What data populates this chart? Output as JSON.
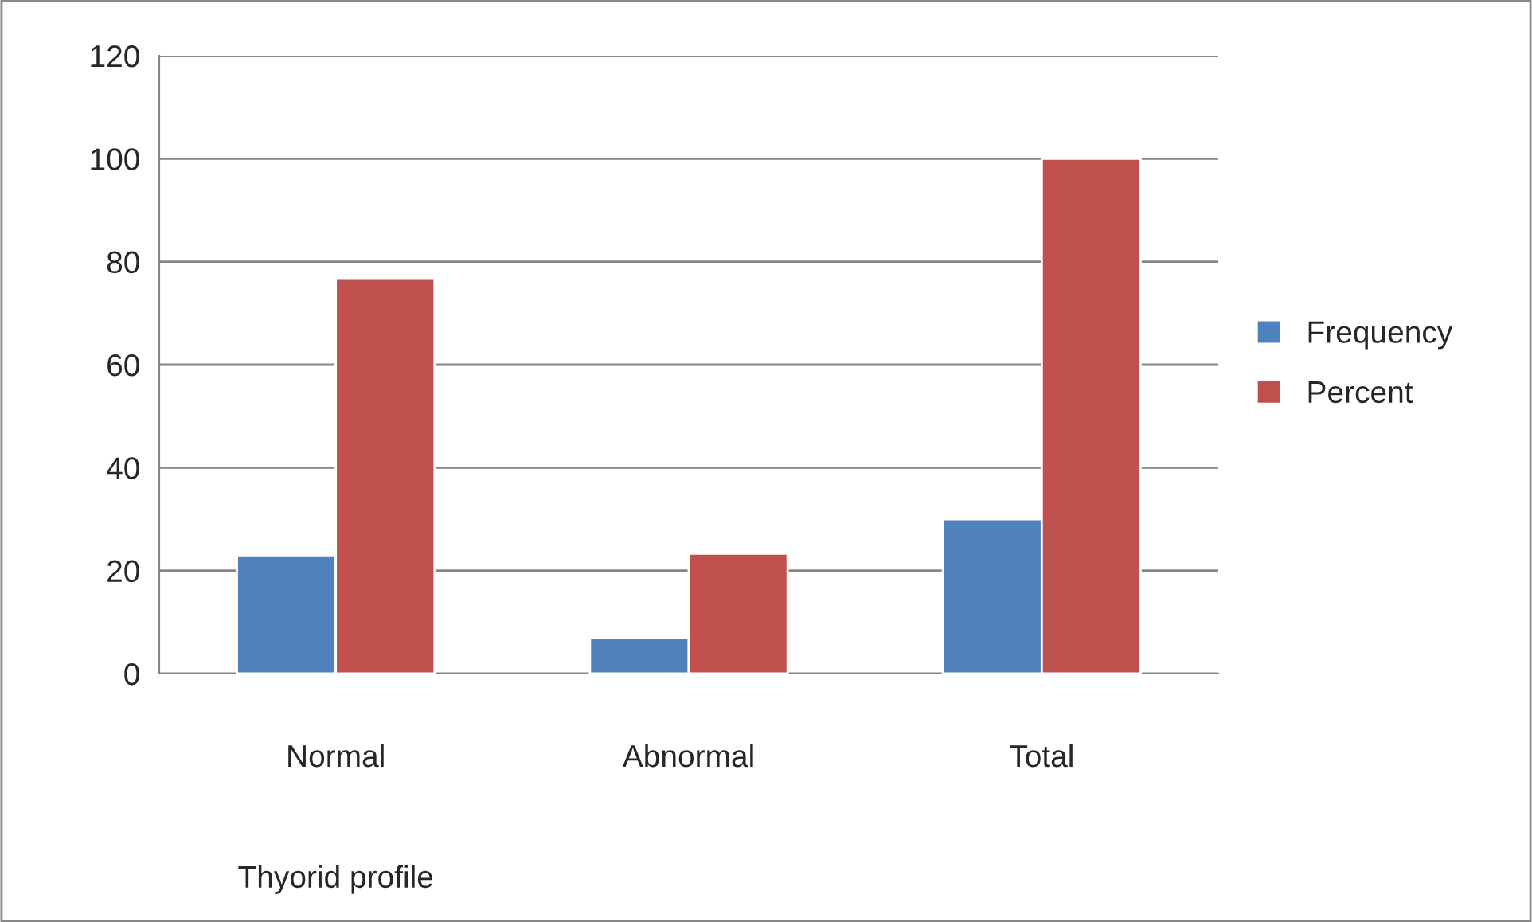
{
  "chart_data": {
    "type": "bar",
    "categories": [
      "Normal",
      "Abnormal",
      "Total"
    ],
    "xlabel": "Thyorid profile",
    "series": [
      {
        "name": "Frequency",
        "color": "#4f81bd",
        "values": [
          23,
          7,
          30
        ]
      },
      {
        "name": "Percent",
        "color": "#c0504d",
        "values": [
          76.7,
          23.3,
          100
        ]
      }
    ],
    "ylim": [
      0,
      120
    ],
    "yticks": [
      0,
      20,
      40,
      60,
      80,
      100,
      120
    ],
    "grid": "y",
    "legend": "right"
  }
}
